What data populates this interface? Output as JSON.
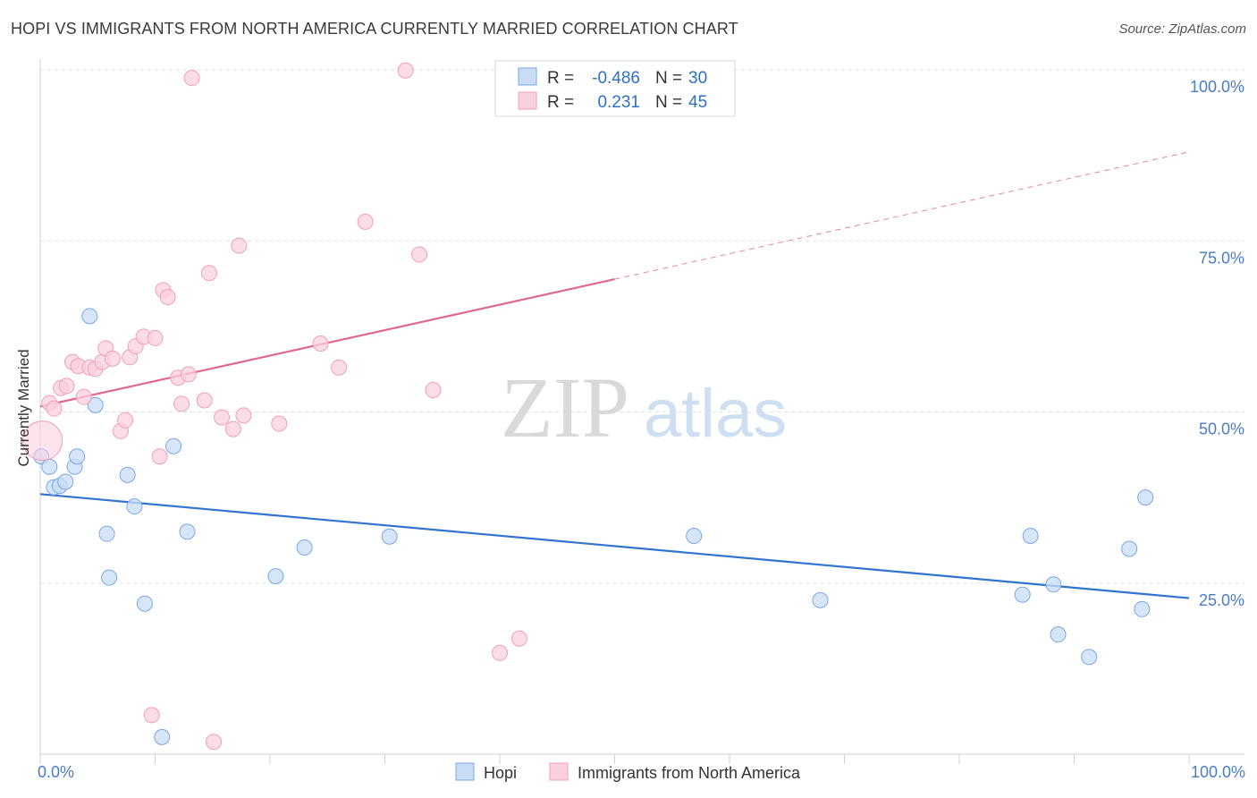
{
  "header": {
    "title": "HOPI VS IMMIGRANTS FROM NORTH AMERICA CURRENTLY MARRIED CORRELATION CHART",
    "source": "Source: ZipAtlas.com"
  },
  "watermark": {
    "zip": "ZIP",
    "atlas": "atlas"
  },
  "chart_data": {
    "type": "scatter",
    "title": "HOPI VS IMMIGRANTS FROM NORTH AMERICA CURRENTLY MARRIED CORRELATION CHART",
    "xlabel": "",
    "ylabel": "Currently Married",
    "xlim": [
      0,
      100
    ],
    "ylim": [
      0,
      100
    ],
    "x_tick_labels": [
      "0.0%",
      "100.0%"
    ],
    "y_ticks": [
      25,
      50,
      75,
      100
    ],
    "y_tick_labels": [
      "25.0%",
      "50.0%",
      "75.0%",
      "100.0%"
    ],
    "grid": true,
    "legend_top": {
      "rows": [
        {
          "r_label": "R =",
          "r_value": "-0.486",
          "n_label": "N =",
          "n_value": "30"
        },
        {
          "r_label": "R =",
          "r_value": " 0.231",
          "n_label": "N =",
          "n_value": "45"
        }
      ]
    },
    "series": [
      {
        "name": "Hopi",
        "color": "#7aa8e6",
        "fill": "#c9dcf5",
        "line_color": "#2f74d0",
        "trend": {
          "x0": 0,
          "y0": 38.0,
          "x1": 100,
          "y1": 22.8,
          "dashed_from": null
        },
        "points": [
          [
            0.1,
            43.5
          ],
          [
            0.8,
            42.0
          ],
          [
            1.2,
            39.0
          ],
          [
            1.7,
            39.2
          ],
          [
            2.2,
            39.8
          ],
          [
            3.0,
            42.0
          ],
          [
            3.2,
            43.5
          ],
          [
            4.3,
            64.0
          ],
          [
            4.8,
            51.0
          ],
          [
            5.8,
            32.2
          ],
          [
            6.0,
            25.8
          ],
          [
            7.6,
            40.8
          ],
          [
            8.2,
            36.2
          ],
          [
            9.1,
            22.0
          ],
          [
            10.6,
            2.5
          ],
          [
            11.6,
            45.0
          ],
          [
            12.8,
            32.5
          ],
          [
            20.5,
            26.0
          ],
          [
            23.0,
            30.2
          ],
          [
            30.4,
            31.8
          ],
          [
            56.9,
            31.9
          ],
          [
            67.9,
            22.5
          ],
          [
            85.5,
            23.3
          ],
          [
            86.2,
            31.9
          ],
          [
            88.2,
            24.8
          ],
          [
            88.6,
            17.5
          ],
          [
            91.3,
            14.2
          ],
          [
            94.8,
            30.0
          ],
          [
            95.9,
            21.2
          ],
          [
            96.2,
            37.5
          ]
        ]
      },
      {
        "name": "Immigrants from North America",
        "color": "#f0a0b8",
        "fill": "#fbd0dd",
        "line_color": "#e06890",
        "trend": {
          "x0": 0,
          "y0": 50.8,
          "x1": 100,
          "y1": 88.0,
          "dashed_from": 50
        },
        "points": [
          [
            0.2,
            45.8
          ],
          [
            0.8,
            51.3
          ],
          [
            1.2,
            50.5
          ],
          [
            1.8,
            53.5
          ],
          [
            2.3,
            53.8
          ],
          [
            2.8,
            57.3
          ],
          [
            3.3,
            56.7
          ],
          [
            3.8,
            52.2
          ],
          [
            4.3,
            56.5
          ],
          [
            4.8,
            56.3
          ],
          [
            5.4,
            57.3
          ],
          [
            5.7,
            59.3
          ],
          [
            6.3,
            57.8
          ],
          [
            7.0,
            47.2
          ],
          [
            7.4,
            48.8
          ],
          [
            7.8,
            58.0
          ],
          [
            8.3,
            59.6
          ],
          [
            9.0,
            61.0
          ],
          [
            9.7,
            5.7
          ],
          [
            10.0,
            60.8
          ],
          [
            10.4,
            43.5
          ],
          [
            10.7,
            67.8
          ],
          [
            11.1,
            66.8
          ],
          [
            12.0,
            55.0
          ],
          [
            12.3,
            51.2
          ],
          [
            12.9,
            55.5
          ],
          [
            13.2,
            98.8
          ],
          [
            14.3,
            51.7
          ],
          [
            14.7,
            70.3
          ],
          [
            15.1,
            1.8
          ],
          [
            15.8,
            49.2
          ],
          [
            16.8,
            47.5
          ],
          [
            17.3,
            74.3
          ],
          [
            17.7,
            49.5
          ],
          [
            20.8,
            48.3
          ],
          [
            24.4,
            60.0
          ],
          [
            26.0,
            56.5
          ],
          [
            28.3,
            77.8
          ],
          [
            31.8,
            99.9
          ],
          [
            33.0,
            73.0
          ],
          [
            34.2,
            53.2
          ],
          [
            40.0,
            14.8
          ],
          [
            41.7,
            16.9
          ],
          [
            47.0,
            99.9
          ],
          [
            50.0,
            99.9
          ]
        ]
      }
    ]
  },
  "legend_bottom": {
    "items": [
      {
        "label": "Hopi"
      },
      {
        "label": "Immigrants from North America"
      }
    ]
  }
}
